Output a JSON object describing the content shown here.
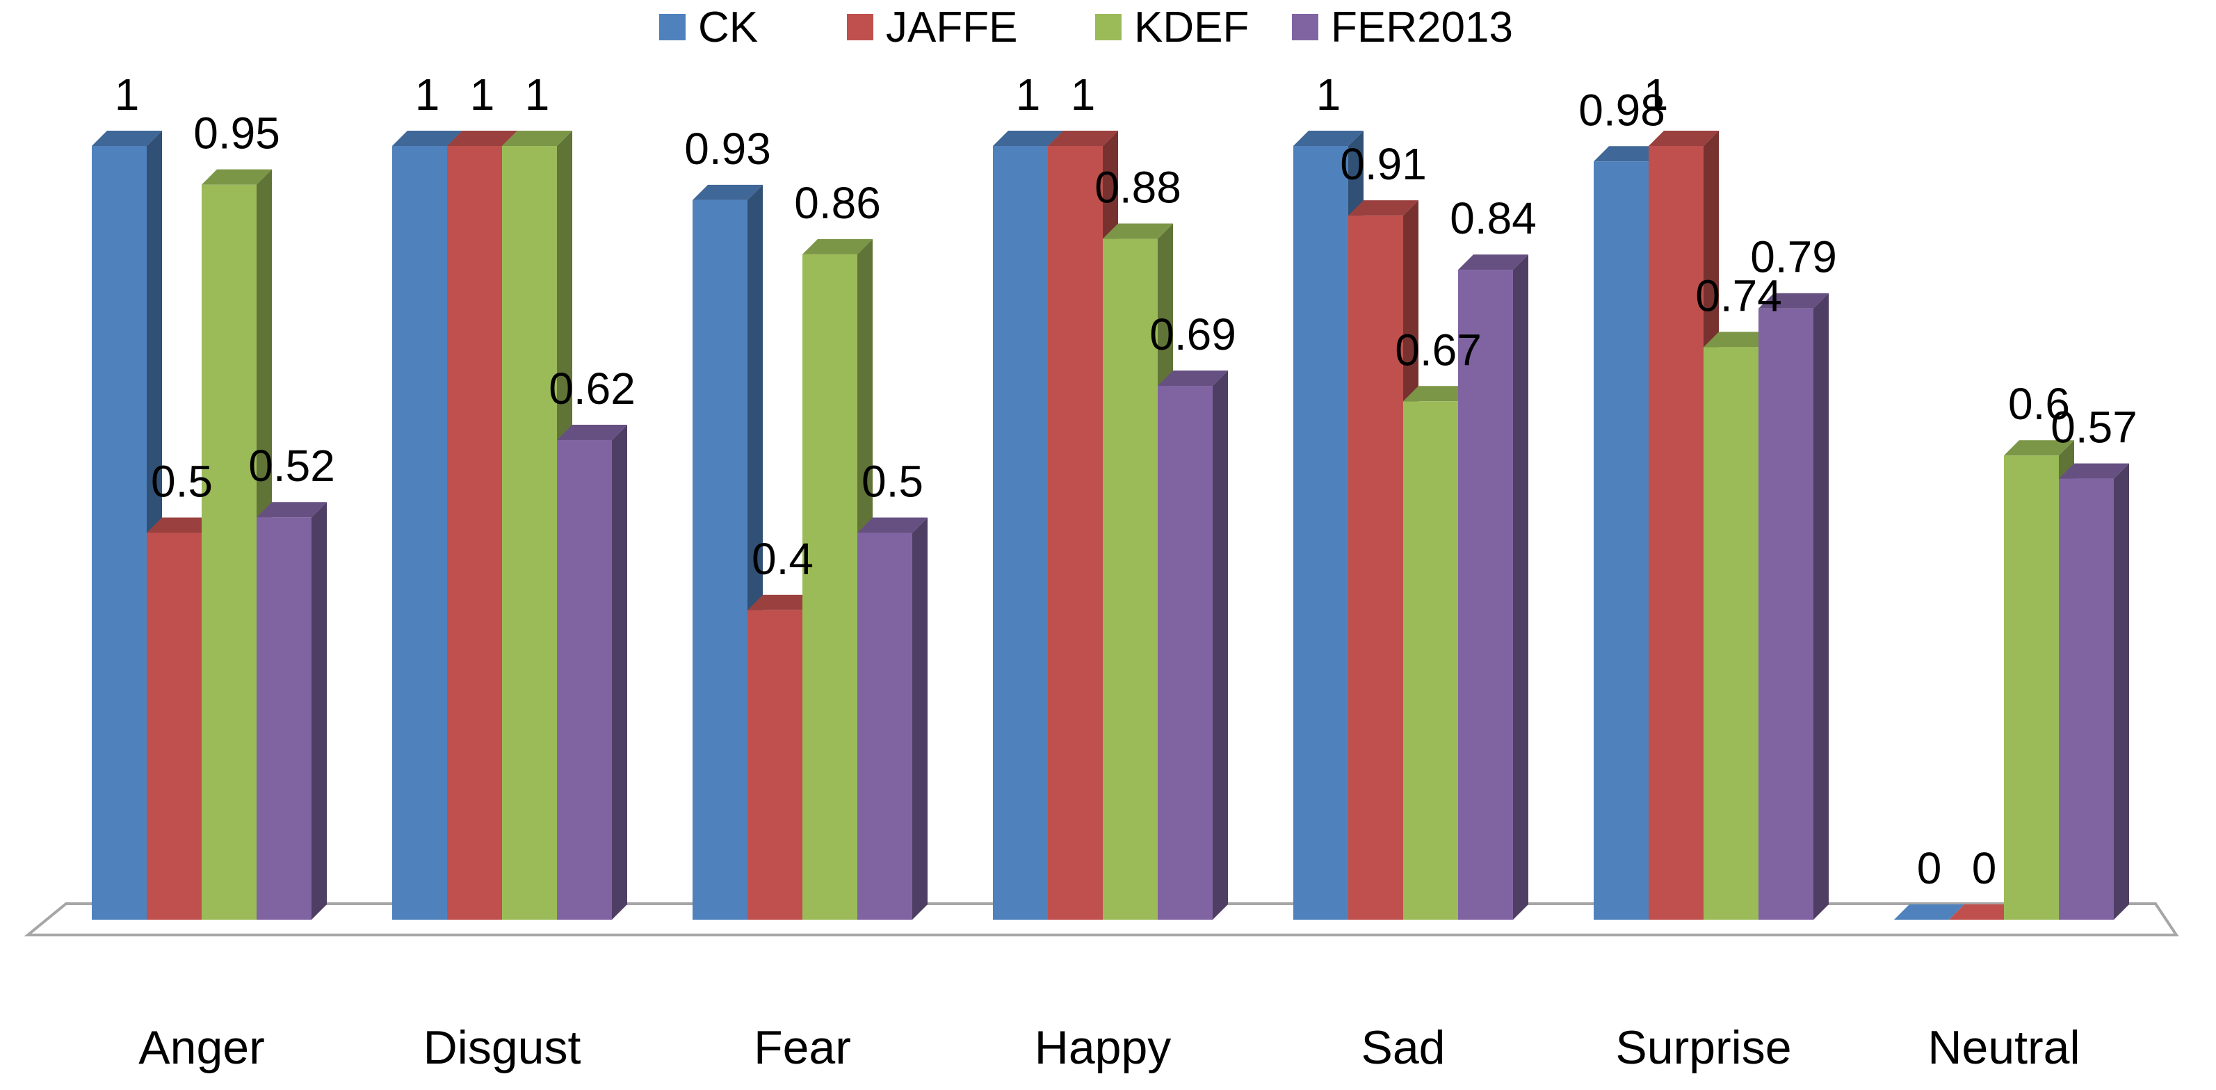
{
  "chart_data": {
    "type": "bar",
    "style": "3d-clustered-column",
    "categories": [
      "Anger",
      "Disgust",
      "Fear",
      "Happy",
      "Sad",
      "Surprise",
      "Neutral"
    ],
    "series": [
      {
        "name": "CK",
        "color": "#4F81BD",
        "values": [
          1,
          1,
          0.93,
          1,
          1,
          0.98,
          0
        ],
        "labels": [
          "1",
          "1",
          "0.93",
          "1",
          "1",
          "0.98",
          "0"
        ]
      },
      {
        "name": "JAFFE",
        "color": "#C0504D",
        "values": [
          0.5,
          1,
          0.4,
          1,
          0.91,
          1,
          0
        ],
        "labels": [
          "0.5",
          "1",
          "0.4",
          "1",
          "0.91",
          "1",
          "0"
        ]
      },
      {
        "name": "KDEF",
        "color": "#9BBB59",
        "values": [
          0.95,
          1,
          0.86,
          0.88,
          0.67,
          0.74,
          0.6
        ],
        "labels": [
          "0.95",
          "1",
          "0.86",
          "0.88",
          "0.67",
          "0.74",
          "0.6"
        ]
      },
      {
        "name": "FER2013",
        "color": "#8064A2",
        "values": [
          0.52,
          0.62,
          0.5,
          0.69,
          0.84,
          0.79,
          0.57
        ],
        "labels": [
          "0.52",
          "0.62",
          "0.5",
          "0.69",
          "0.84",
          "0.79",
          "0.57"
        ]
      }
    ],
    "legend_position": "top",
    "ylim": [
      0,
      1
    ],
    "title": "",
    "xlabel": "",
    "ylabel": "",
    "grid": false
  }
}
